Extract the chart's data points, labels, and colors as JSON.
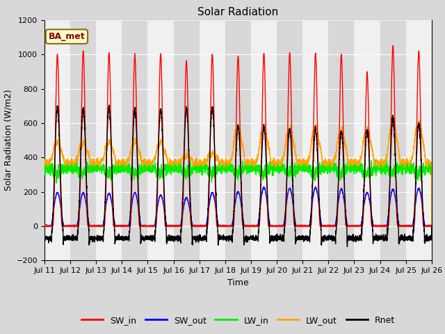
{
  "title": "Solar Radiation",
  "ylabel": "Solar Radiation (W/m2)",
  "xlabel": "Time",
  "ylim": [
    -200,
    1200
  ],
  "n_days": 15,
  "xtick_labels": [
    "Jul 11",
    "Jul 12",
    "Jul 13",
    "Jul 14",
    "Jul 15",
    "Jul 16",
    "Jul 17",
    "Jul 18",
    "Jul 19",
    "Jul 20",
    "Jul 21",
    "Jul 22",
    "Jul 23",
    "Jul 24",
    "Jul 25",
    "Jul 26"
  ],
  "colors": {
    "SW_in": "#ff0000",
    "SW_out": "#0000ff",
    "LW_in": "#00ee00",
    "LW_out": "#ffa500",
    "Rnet": "#000000"
  },
  "annotation_text": "BA_met",
  "bg_color": "#d8d8d8",
  "plot_bg_color": "#e8e8e8",
  "band_color_light": "#f0f0f0",
  "band_color_dark": "#d8d8d8",
  "grid_color": "#ffffff",
  "title_fontsize": 11,
  "label_fontsize": 9,
  "tick_fontsize": 8,
  "line_width": 1.0,
  "yticks": [
    -200,
    0,
    200,
    400,
    600,
    800,
    1000,
    1200
  ],
  "SW_in_peaks": [
    1000,
    1020,
    1005,
    1000,
    1000,
    960,
    1000,
    990,
    1005,
    1005,
    1005,
    1000,
    890,
    1050,
    1020
  ],
  "SW_out_peaks": [
    195,
    195,
    190,
    195,
    180,
    165,
    195,
    200,
    225,
    220,
    225,
    215,
    195,
    215,
    220
  ],
  "LW_out_peaks": [
    490,
    490,
    490,
    490,
    490,
    410,
    420,
    580,
    575,
    570,
    575,
    560,
    560,
    610,
    600
  ],
  "Rnet_peaks": [
    690,
    680,
    690,
    680,
    680,
    680,
    690,
    580,
    575,
    565,
    565,
    555,
    555,
    630,
    600
  ]
}
